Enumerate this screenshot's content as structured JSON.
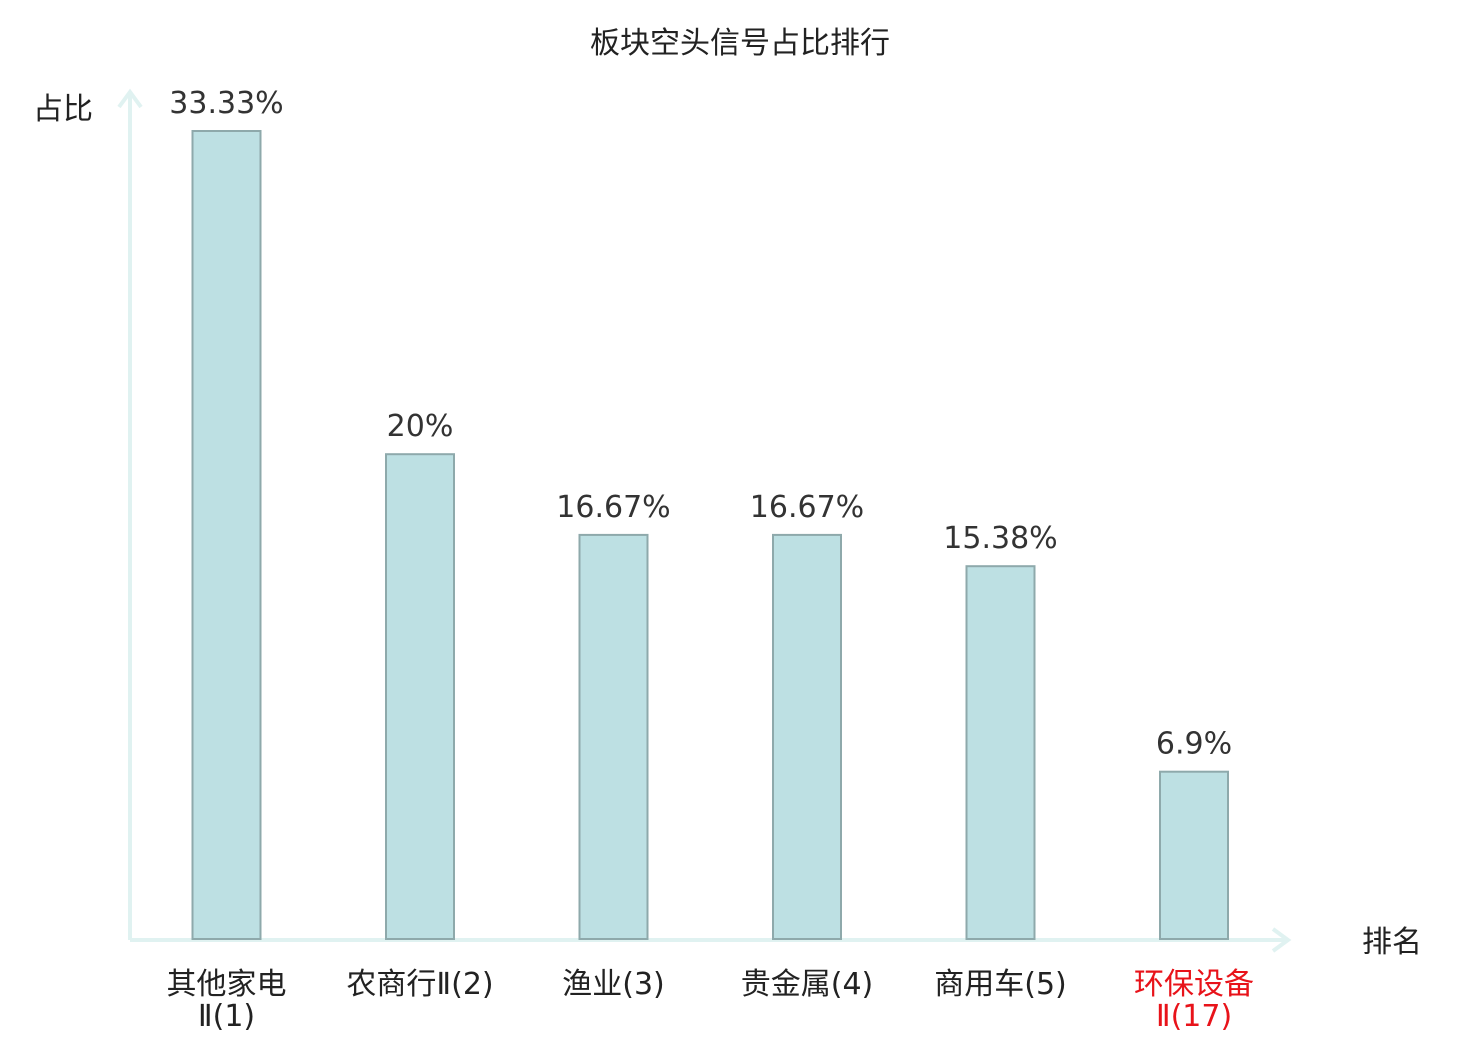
{
  "chart_data": {
    "type": "bar",
    "title": "板块空头信号占比排行",
    "ylabel": "占比",
    "xlabel": "排名",
    "categories": [
      {
        "name": "其他家电",
        "rank": "Ⅱ(1)",
        "highlight": false
      },
      {
        "name": "农商行Ⅱ",
        "rank": "(2)",
        "highlight": false
      },
      {
        "name": "渔业",
        "rank": "(3)",
        "highlight": false
      },
      {
        "name": "贵金属",
        "rank": "(4)",
        "highlight": false
      },
      {
        "name": "商用车",
        "rank": "(5)",
        "highlight": false
      },
      {
        "name": "环保设备",
        "rank": "Ⅱ(17)",
        "highlight": true
      }
    ],
    "values": [
      33.33,
      20,
      16.67,
      16.67,
      15.38,
      6.9
    ],
    "value_labels": [
      "33.33%",
      "20%",
      "16.67%",
      "16.67%",
      "15.38%",
      "6.9%"
    ],
    "ylim": [
      0,
      35
    ],
    "grid": false,
    "legend": "none"
  },
  "colors": {
    "bar_fill": "#bde0e3",
    "bar_stroke": "#8ea9ab",
    "axis": "#e0f2f1",
    "text": "#222222",
    "value_text": "#333333",
    "highlight": "#e8131a"
  }
}
